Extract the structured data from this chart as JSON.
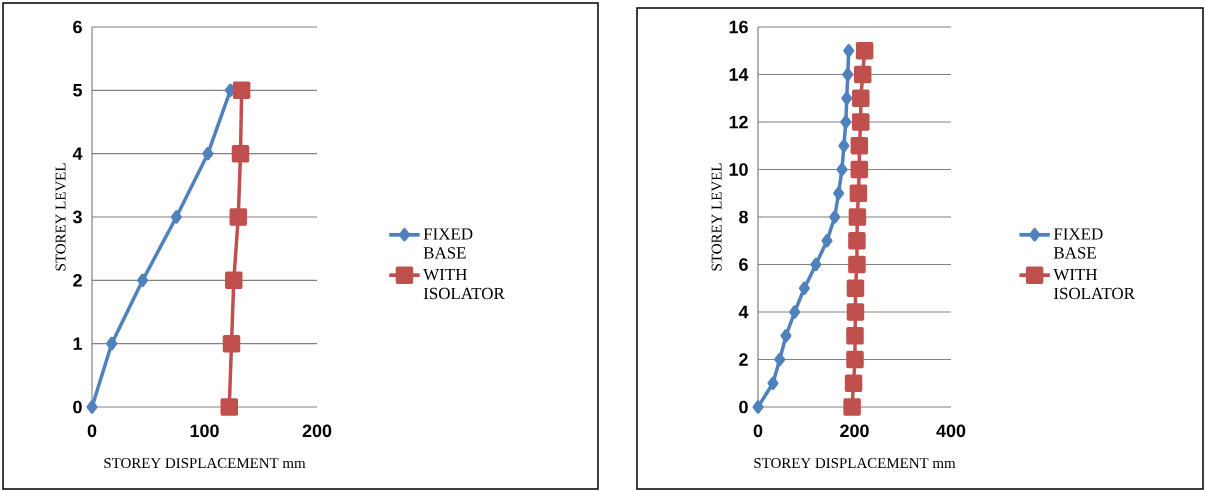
{
  "chart_data": [
    {
      "type": "line",
      "xlabel": "STOREY DISPLACEMENT mm",
      "ylabel": "STOREY LEVEL",
      "xlim": [
        0,
        200
      ],
      "xticks": [
        0,
        100,
        200
      ],
      "ylim": [
        0,
        6
      ],
      "yticks": [
        0,
        1,
        2,
        3,
        4,
        5,
        6
      ],
      "grid": "y",
      "legend": "right",
      "line_style": "solid",
      "series": [
        {
          "name": "FIXED BASE",
          "color": "#4f81bd",
          "marker": "diamond",
          "x": [
            0,
            17.5,
            45,
            75,
            103,
            123
          ],
          "values": [
            0,
            1,
            2,
            3,
            4,
            5
          ]
        },
        {
          "name": "WITH ISOLATOR",
          "color": "#c0504d",
          "marker": "square",
          "x": [
            122,
            124,
            126,
            130,
            132,
            133
          ],
          "values": [
            0,
            1,
            2,
            3,
            4,
            5
          ]
        }
      ]
    },
    {
      "type": "line",
      "xlabel": "STOREY DISPLACEMENT mm",
      "ylabel": "STOREY LEVEL",
      "xlim": [
        0,
        400
      ],
      "xticks": [
        0,
        200,
        400
      ],
      "ylim": [
        0,
        16
      ],
      "yticks": [
        0,
        2,
        4,
        6,
        8,
        10,
        12,
        14,
        16
      ],
      "grid": "y",
      "legend": "right",
      "line_style": "solid",
      "series": [
        {
          "name": "FIXED BASE",
          "color": "#4f81bd",
          "marker": "diamond",
          "x": [
            0,
            31,
            45,
            58,
            76,
            96,
            120,
            143,
            159,
            167,
            174,
            178,
            182,
            184,
            186,
            188
          ],
          "values": [
            0,
            1,
            2,
            3,
            4,
            5,
            6,
            7,
            8,
            9,
            10,
            11,
            12,
            13,
            14,
            15
          ]
        },
        {
          "name": "WITH ISOLATOR",
          "color": "#c0504d",
          "marker": "square",
          "x": [
            195,
            198,
            201,
            201,
            202,
            202,
            205,
            205,
            206,
            208,
            210,
            210,
            213,
            213,
            217,
            221
          ],
          "values": [
            0,
            1,
            2,
            3,
            4,
            5,
            6,
            7,
            8,
            9,
            10,
            11,
            12,
            13,
            14,
            15
          ]
        }
      ]
    }
  ]
}
